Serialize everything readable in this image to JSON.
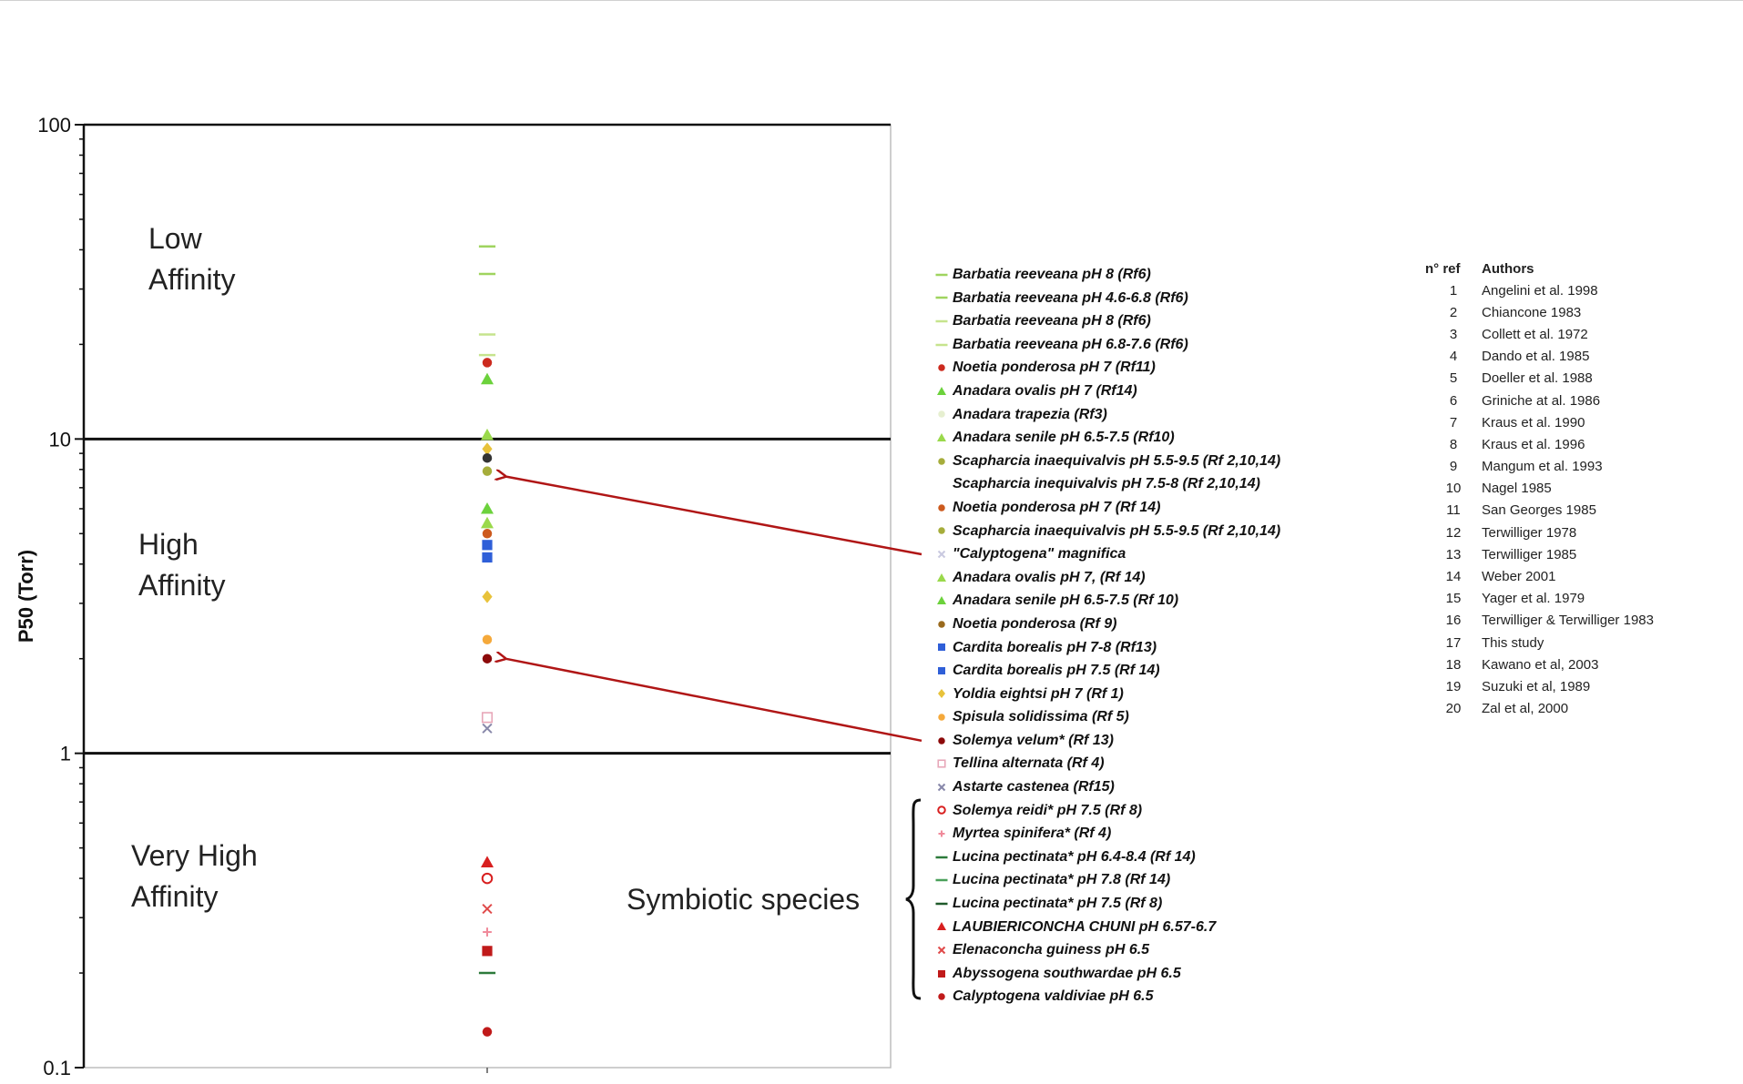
{
  "chart_data": {
    "type": "scatter",
    "ylabel": "P50 (Torr)",
    "yscale": "log",
    "ylim": [
      0.1,
      100
    ],
    "y_ticks": [
      "100",
      "10",
      "1",
      "0.1"
    ],
    "grid": "major lines at 1 and 10",
    "region_labels": [
      {
        "line1": "Low",
        "line2": "Affinity"
      },
      {
        "line1": "High",
        "line2": "Affinity"
      },
      {
        "line1": "Very High",
        "line2": "Affinity"
      }
    ],
    "symbiotic_label": "Symbiotic species",
    "points": [
      {
        "y": 41,
        "marker": "dash",
        "color": "#9fd45f"
      },
      {
        "y": 33.5,
        "marker": "dash",
        "color": "#9fd45f"
      },
      {
        "y": 21.5,
        "marker": "dash",
        "color": "#c6e48d"
      },
      {
        "y": 18.5,
        "marker": "dash",
        "color": "#c6e48d"
      },
      {
        "y": 17.5,
        "marker": "dot",
        "color": "#cc2a1e"
      },
      {
        "y": 15.5,
        "marker": "triangle",
        "color": "#6cd23c"
      },
      {
        "y": 10.3,
        "marker": "triangle",
        "color": "#9ad94b"
      },
      {
        "y": 9.3,
        "marker": "diamond",
        "color": "#e8c23a"
      },
      {
        "y": 8.7,
        "marker": "dot",
        "color": "#333333"
      },
      {
        "y": 7.9,
        "marker": "dot",
        "color": "#a6ad3b"
      },
      {
        "y": 6.0,
        "marker": "triangle",
        "color": "#6cd23c"
      },
      {
        "y": 5.4,
        "marker": "triangle",
        "color": "#9ad94b"
      },
      {
        "y": 5.0,
        "marker": "dot",
        "color": "#cc5a1e"
      },
      {
        "y": 4.6,
        "marker": "square",
        "color": "#2f5fd8"
      },
      {
        "y": 4.2,
        "marker": "square",
        "color": "#2f5fd8"
      },
      {
        "y": 3.15,
        "marker": "diamond",
        "color": "#e8c23a"
      },
      {
        "y": 2.3,
        "marker": "dot",
        "color": "#f5a93b"
      },
      {
        "y": 2.0,
        "marker": "dot",
        "color": "#8c0a0a"
      },
      {
        "y": 1.3,
        "marker": "open-square",
        "color": "#e7a7b8"
      },
      {
        "y": 1.2,
        "marker": "x",
        "color": "#8888aa"
      },
      {
        "y": 0.45,
        "marker": "triangle",
        "color": "#d81f1f"
      },
      {
        "y": 0.4,
        "marker": "open-circle",
        "color": "#d81f1f"
      },
      {
        "y": 0.32,
        "marker": "x",
        "color": "#e04a4a"
      },
      {
        "y": 0.27,
        "marker": "plus",
        "color": "#f08a9a"
      },
      {
        "y": 0.235,
        "marker": "square",
        "color": "#c01a1a"
      },
      {
        "y": 0.2,
        "marker": "dash",
        "color": "#2c7a3a"
      },
      {
        "y": 0.13,
        "marker": "dot",
        "color": "#c01a1a"
      }
    ],
    "arrows": [
      {
        "from_legend_index": 12,
        "to_y": 7.6
      },
      {
        "from_legend_index": 20,
        "to_y": 2.0
      }
    ],
    "legend": [
      {
        "label": "Barbatia reeveana pH 8 (Rf6)",
        "marker": "dash",
        "color": "#9fd45f"
      },
      {
        "label": "Barbatia reeveana pH 4.6-6.8 (Rf6)",
        "marker": "dash",
        "color": "#9fd45f"
      },
      {
        "label": "Barbatia reeveana pH 8 (Rf6)",
        "marker": "dash",
        "color": "#c6e48d"
      },
      {
        "label": "Barbatia reeveana pH 6.8-7.6 (Rf6)",
        "marker": "dash",
        "color": "#c6e48d"
      },
      {
        "label": "Noetia ponderosa pH 7 (Rf11)",
        "marker": "dot",
        "color": "#cc2a1e"
      },
      {
        "label": "Anadara ovalis pH 7 (Rf14)",
        "marker": "triangle",
        "color": "#6cd23c"
      },
      {
        "label": "Anadara trapezia (Rf3)",
        "marker": "dot",
        "color": "#e6efd0"
      },
      {
        "label": "Anadara senile pH 6.5-7.5 (Rf10)",
        "marker": "triangle",
        "color": "#9ad94b"
      },
      {
        "label": "Scapharcia inaequivalvis pH 5.5-9.5 (Rf 2,10,14)",
        "marker": "dot",
        "color": "#a6ad3b"
      },
      {
        "label": "Scapharcia inequivalvis pH 7.5-8 (Rf 2,10,14)",
        "marker": "none",
        "color": "#ffffff"
      },
      {
        "label": "Noetia ponderosa pH 7 (Rf 14)",
        "marker": "dot",
        "color": "#cc5a1e"
      },
      {
        "label": "Scapharcia inaequivalvis pH 5.5-9.5 (Rf 2,10,14)",
        "marker": "dot",
        "color": "#a6ad3b"
      },
      {
        "label": "\"Calyptogena\" magnifica",
        "marker": "x",
        "color": "#c9c9e0"
      },
      {
        "label": "Anadara ovalis pH 7, (Rf 14)",
        "marker": "triangle",
        "color": "#9ad94b"
      },
      {
        "label": "Anadara senile pH 6.5-7.5 (Rf 10)",
        "marker": "triangle",
        "color": "#6cd23c"
      },
      {
        "label": "Noetia ponderosa (Rf 9)",
        "marker": "dot",
        "color": "#9a6a1e"
      },
      {
        "label": "Cardita borealis pH 7-8 (Rf13)",
        "marker": "square",
        "color": "#2f5fd8"
      },
      {
        "label": "Cardita borealis pH 7.5 (Rf 14)",
        "marker": "square",
        "color": "#2f5fd8"
      },
      {
        "label": "Yoldia eightsi pH 7 (Rf 1)",
        "marker": "diamond",
        "color": "#e8c23a"
      },
      {
        "label": "Spisula solidissima (Rf 5)",
        "marker": "dot",
        "color": "#f5a93b"
      },
      {
        "label": "Solemya velum* (Rf 13)",
        "marker": "dot",
        "color": "#8c0a0a"
      },
      {
        "label": "Tellina alternata (Rf 4)",
        "marker": "open-square",
        "color": "#e7a7b8"
      },
      {
        "label": "Astarte castenea (Rf15)",
        "marker": "x",
        "color": "#8888aa"
      },
      {
        "label": "Solemya reidi* pH 7.5 (Rf 8)",
        "marker": "open-circle",
        "color": "#d81f1f"
      },
      {
        "label": "Myrtea spinifera* (Rf 4)",
        "marker": "plus",
        "color": "#f08a9a"
      },
      {
        "label": "Lucina pectinata* pH 6.4-8.4 (Rf 14)",
        "marker": "dash",
        "color": "#2c7a3a"
      },
      {
        "label": "Lucina pectinata* pH 7.8 (Rf 14)",
        "marker": "dash",
        "color": "#4aa05a"
      },
      {
        "label": "Lucina pectinata* pH 7.5 (Rf 8)",
        "marker": "dash",
        "color": "#1f5a2a"
      },
      {
        "label": "LAUBIERICONCHA CHUNI pH 6.57-6.7",
        "marker": "triangle",
        "color": "#d81f1f"
      },
      {
        "label": "Elenaconcha guiness pH 6.5",
        "marker": "x",
        "color": "#e04a4a"
      },
      {
        "label": "Abyssogena southwardae pH 6.5",
        "marker": "square",
        "color": "#c01a1a"
      },
      {
        "label": "Calyptogena valdiviae pH 6.5",
        "marker": "dot",
        "color": "#c01a1a"
      }
    ],
    "references": {
      "header": {
        "num": "n° ref",
        "authors": "Authors"
      },
      "rows": [
        {
          "num": "1",
          "author": "Angelini et al. 1998"
        },
        {
          "num": "2",
          "author": "Chiancone 1983"
        },
        {
          "num": "3",
          "author": "Collett et al. 1972"
        },
        {
          "num": "4",
          "author": "Dando et al. 1985"
        },
        {
          "num": "5",
          "author": "Doeller et al. 1988"
        },
        {
          "num": "6",
          "author": "Griniche at al. 1986"
        },
        {
          "num": "7",
          "author": "Kraus et al. 1990"
        },
        {
          "num": "8",
          "author": "Kraus et al. 1996"
        },
        {
          "num": "9",
          "author": "Mangum et al. 1993"
        },
        {
          "num": "10",
          "author": "Nagel 1985"
        },
        {
          "num": "11",
          "author": "San Georges 1985"
        },
        {
          "num": "12",
          "author": "Terwilliger 1978"
        },
        {
          "num": "13",
          "author": "Terwilliger 1985"
        },
        {
          "num": "14",
          "author": "Weber 2001"
        },
        {
          "num": "15",
          "author": "Yager et al. 1979"
        },
        {
          "num": "16",
          "author": "Terwilliger & Terwilliger 1983"
        },
        {
          "num": "17",
          "author": "This study"
        },
        {
          "num": "18",
          "author": "Kawano et al, 2003"
        },
        {
          "num": "19",
          "author": "Suzuki et al, 1989"
        },
        {
          "num": "20",
          "author": "Zal et al, 2000"
        }
      ]
    }
  }
}
